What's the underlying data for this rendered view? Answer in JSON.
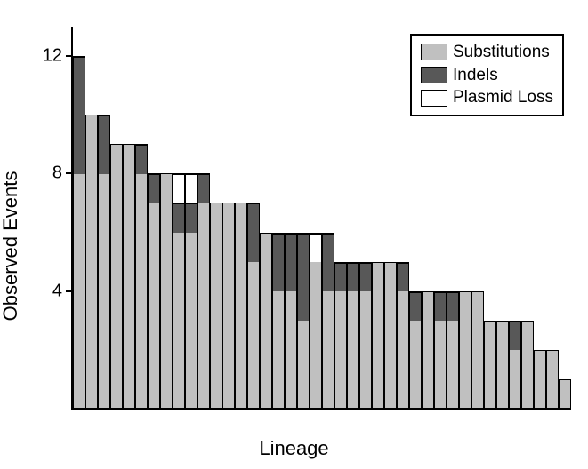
{
  "chart": {
    "type": "stacked-bar",
    "xlabel": "Lineage",
    "ylabel": "Observed Events",
    "label_fontsize": 22,
    "tick_fontsize": 20,
    "background_color": "#ffffff",
    "axis_color": "#000000",
    "ylim": [
      0,
      13
    ],
    "yticks": [
      4,
      8,
      12
    ],
    "colors": {
      "substitutions": "#c0c0c0",
      "indels": "#585858",
      "plasmid_loss": "#ffffff"
    },
    "legend": {
      "items": [
        {
          "label": "Substitutions",
          "color_key": "substitutions"
        },
        {
          "label": "Indels",
          "color_key": "indels"
        },
        {
          "label": "Plasmid Loss",
          "color_key": "plasmid_loss"
        }
      ],
      "border_color": "#000000",
      "fontsize": 19
    },
    "bars": [
      {
        "substitutions": 8,
        "indels": 4,
        "plasmid_loss": 0
      },
      {
        "substitutions": 10,
        "indels": 0,
        "plasmid_loss": 0
      },
      {
        "substitutions": 8,
        "indels": 2,
        "plasmid_loss": 0
      },
      {
        "substitutions": 9,
        "indels": 0,
        "plasmid_loss": 0
      },
      {
        "substitutions": 9,
        "indels": 0,
        "plasmid_loss": 0
      },
      {
        "substitutions": 8,
        "indels": 1,
        "plasmid_loss": 0
      },
      {
        "substitutions": 7,
        "indels": 1,
        "plasmid_loss": 0
      },
      {
        "substitutions": 8,
        "indels": 0,
        "plasmid_loss": 0
      },
      {
        "substitutions": 6,
        "indels": 1,
        "plasmid_loss": 1
      },
      {
        "substitutions": 6,
        "indels": 1,
        "plasmid_loss": 1
      },
      {
        "substitutions": 7,
        "indels": 1,
        "plasmid_loss": 0
      },
      {
        "substitutions": 7,
        "indels": 0,
        "plasmid_loss": 0
      },
      {
        "substitutions": 7,
        "indels": 0,
        "plasmid_loss": 0
      },
      {
        "substitutions": 7,
        "indels": 0,
        "plasmid_loss": 0
      },
      {
        "substitutions": 5,
        "indels": 2,
        "plasmid_loss": 0
      },
      {
        "substitutions": 6,
        "indels": 0,
        "plasmid_loss": 0
      },
      {
        "substitutions": 4,
        "indels": 2,
        "plasmid_loss": 0
      },
      {
        "substitutions": 4,
        "indels": 2,
        "plasmid_loss": 0
      },
      {
        "substitutions": 3,
        "indels": 3,
        "plasmid_loss": 0
      },
      {
        "substitutions": 5,
        "indels": 0,
        "plasmid_loss": 1
      },
      {
        "substitutions": 4,
        "indels": 2,
        "plasmid_loss": 0
      },
      {
        "substitutions": 4,
        "indels": 1,
        "plasmid_loss": 0
      },
      {
        "substitutions": 4,
        "indels": 1,
        "plasmid_loss": 0
      },
      {
        "substitutions": 4,
        "indels": 1,
        "plasmid_loss": 0
      },
      {
        "substitutions": 5,
        "indels": 0,
        "plasmid_loss": 0
      },
      {
        "substitutions": 5,
        "indels": 0,
        "plasmid_loss": 0
      },
      {
        "substitutions": 4,
        "indels": 1,
        "plasmid_loss": 0
      },
      {
        "substitutions": 3,
        "indels": 1,
        "plasmid_loss": 0
      },
      {
        "substitutions": 4,
        "indels": 0,
        "plasmid_loss": 0
      },
      {
        "substitutions": 3,
        "indels": 1,
        "plasmid_loss": 0
      },
      {
        "substitutions": 3,
        "indels": 1,
        "plasmid_loss": 0
      },
      {
        "substitutions": 4,
        "indels": 0,
        "plasmid_loss": 0
      },
      {
        "substitutions": 4,
        "indels": 0,
        "plasmid_loss": 0
      },
      {
        "substitutions": 3,
        "indels": 0,
        "plasmid_loss": 0
      },
      {
        "substitutions": 3,
        "indels": 0,
        "plasmid_loss": 0
      },
      {
        "substitutions": 2,
        "indels": 1,
        "plasmid_loss": 0
      },
      {
        "substitutions": 3,
        "indels": 0,
        "plasmid_loss": 0
      },
      {
        "substitutions": 2,
        "indels": 0,
        "plasmid_loss": 0
      },
      {
        "substitutions": 2,
        "indels": 0,
        "plasmid_loss": 0
      },
      {
        "substitutions": 1,
        "indels": 0,
        "plasmid_loss": 0
      }
    ]
  }
}
